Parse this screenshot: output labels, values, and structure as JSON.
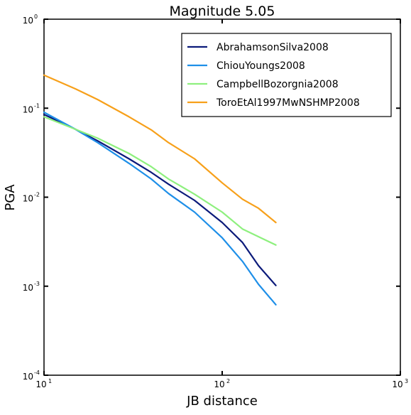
{
  "chart_data": {
    "type": "line",
    "title": "Magnitude 5.05",
    "xlabel": "JB distance",
    "ylabel": "PGA",
    "xscale": "log",
    "yscale": "log",
    "xlim": [
      10,
      1000
    ],
    "ylim": [
      0.0001,
      1
    ],
    "x_ticks": [
      {
        "base": "10",
        "exp": "1"
      },
      {
        "base": "10",
        "exp": "2"
      },
      {
        "base": "10",
        "exp": "3"
      }
    ],
    "y_ticks": [
      {
        "base": "10",
        "exp": "0"
      },
      {
        "base": "10",
        "exp": "-1"
      },
      {
        "base": "10",
        "exp": "-2"
      },
      {
        "base": "10",
        "exp": "-3"
      },
      {
        "base": "10",
        "exp": "-4"
      }
    ],
    "legend_position": "top-right",
    "x": [
      10,
      15,
      20,
      30,
      40,
      50,
      70,
      100,
      130,
      160,
      200
    ],
    "series": [
      {
        "name": "AbrahamsonSilva2008",
        "color": "#0b1a7a",
        "values": [
          0.085,
          0.058,
          0.043,
          0.027,
          0.019,
          0.014,
          0.0092,
          0.0052,
          0.0031,
          0.0017,
          0.00102
        ]
      },
      {
        "name": "ChiouYoungs2008",
        "color": "#1e8fe8",
        "values": [
          0.09,
          0.058,
          0.041,
          0.024,
          0.016,
          0.011,
          0.0068,
          0.0035,
          0.0019,
          0.00105,
          0.00062
        ]
      },
      {
        "name": "CampbellBozorgnia2008",
        "color": "#8ef07e",
        "values": [
          0.08,
          0.058,
          0.046,
          0.031,
          0.022,
          0.016,
          0.0108,
          0.0068,
          0.0044,
          0.0036,
          0.0029
        ]
      },
      {
        "name": "ToroEtAl1997MwNSHMP2008",
        "color": "#f7a01a",
        "values": [
          0.235,
          0.165,
          0.125,
          0.08,
          0.057,
          0.041,
          0.027,
          0.0145,
          0.0095,
          0.0075,
          0.0052
        ]
      }
    ]
  }
}
